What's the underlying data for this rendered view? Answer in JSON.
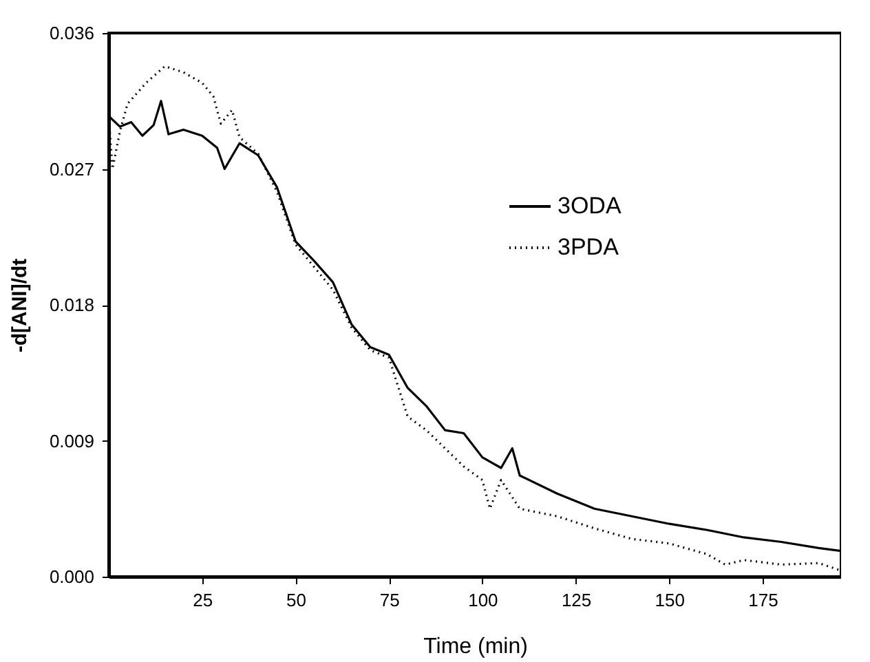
{
  "chart_data": {
    "type": "line",
    "xlabel": "Time (min)",
    "ylabel": "-d[ANI]/dt",
    "xlim": [
      0,
      196
    ],
    "xticks": [
      25,
      50,
      75,
      100,
      125,
      150,
      175
    ],
    "ylim": [
      0,
      0.036
    ],
    "yticks": [
      {
        "value": 0,
        "label": "0.000"
      },
      0.009,
      0.018,
      0.027,
      0.036
    ],
    "legend": "top right",
    "grid": false,
    "marker": "none",
    "series": [
      {
        "name": "3ODA",
        "color": "#000000",
        "line_style": "solid",
        "x": [
          0,
          3,
          6,
          9,
          12,
          14,
          16,
          20,
          25,
          29,
          31,
          35,
          40,
          45,
          50,
          55,
          60,
          65,
          70,
          75,
          80,
          85,
          90,
          95,
          100,
          105,
          108,
          110,
          120,
          130,
          140,
          150,
          160,
          170,
          180,
          190,
          196
        ],
        "values": [
          0.0305,
          0.0298,
          0.0301,
          0.0292,
          0.0299,
          0.0315,
          0.0293,
          0.0296,
          0.0292,
          0.0284,
          0.027,
          0.0287,
          0.0279,
          0.0258,
          0.0222,
          0.0209,
          0.0195,
          0.0167,
          0.0152,
          0.0147,
          0.0125,
          0.0113,
          0.0097,
          0.0095,
          0.0079,
          0.0072,
          0.0085,
          0.0067,
          0.0055,
          0.0045,
          0.004,
          0.0035,
          0.0031,
          0.0026,
          0.0023,
          0.0019,
          0.0017
        ]
      },
      {
        "name": "3PDA",
        "color": "#000000",
        "line_style": "dotted",
        "x": [
          0,
          1,
          3,
          5,
          10,
          15,
          20,
          25,
          28,
          30,
          33,
          35,
          40,
          45,
          50,
          55,
          60,
          65,
          70,
          75,
          80,
          85,
          90,
          95,
          100,
          102,
          105,
          110,
          120,
          130,
          140,
          150,
          160,
          165,
          170,
          180,
          190,
          196
        ],
        "values": [
          0.0305,
          0.027,
          0.0295,
          0.0313,
          0.0327,
          0.0338,
          0.0334,
          0.0327,
          0.0318,
          0.03,
          0.0309,
          0.0291,
          0.028,
          0.0255,
          0.022,
          0.0205,
          0.019,
          0.0165,
          0.015,
          0.0145,
          0.0106,
          0.0097,
          0.0085,
          0.0073,
          0.0064,
          0.0045,
          0.0064,
          0.0045,
          0.004,
          0.0032,
          0.0025,
          0.0022,
          0.0015,
          0.0008,
          0.0011,
          0.0008,
          0.0009,
          0.0004
        ]
      }
    ]
  }
}
